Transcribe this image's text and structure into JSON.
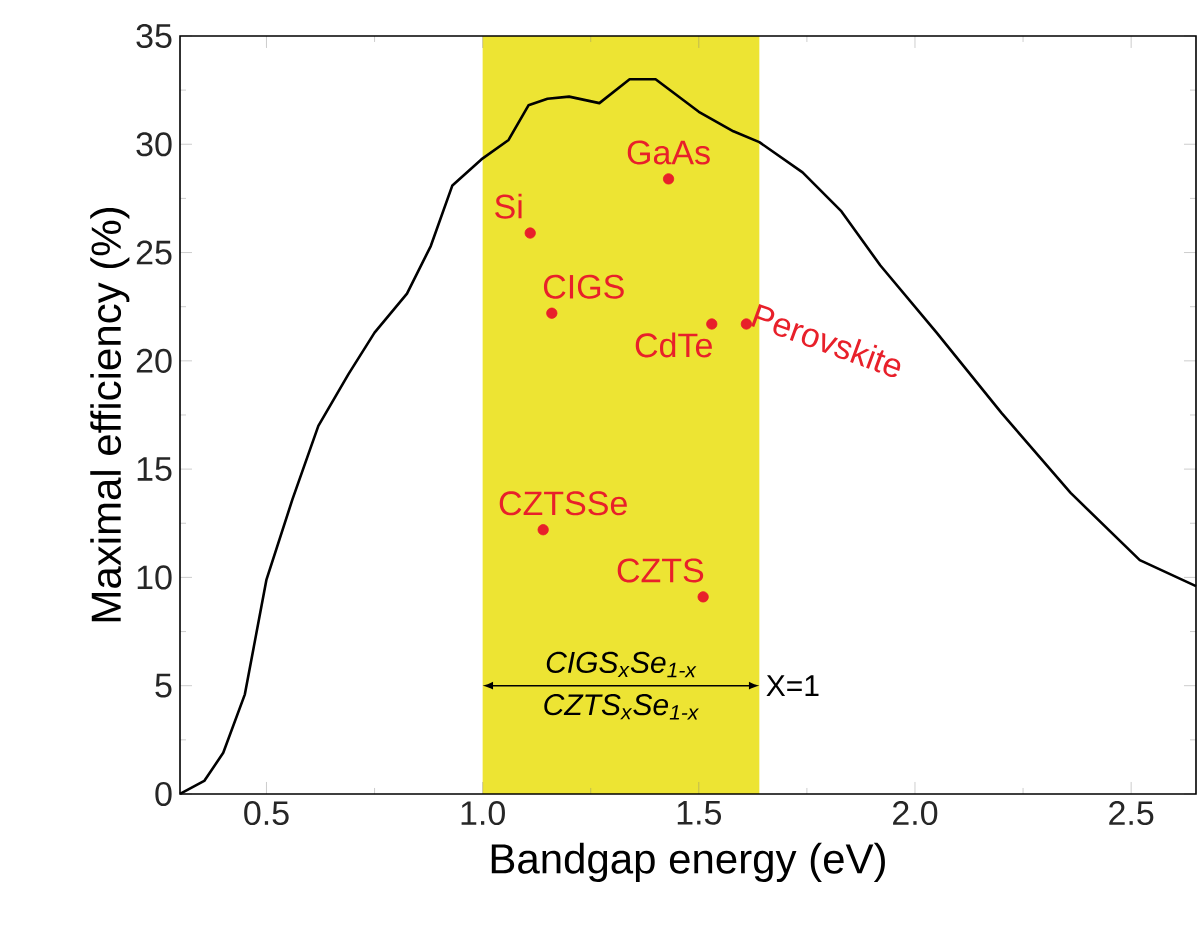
{
  "chart_data": {
    "type": "line",
    "xlabel": "Bandgap energy (eV)",
    "ylabel": "Maximal efficiency (%)",
    "xlim": [
      0.3,
      2.65
    ],
    "ylim": [
      0,
      35
    ],
    "xticks": [
      {
        "value": 0.5,
        "label": "0.5"
      },
      {
        "value": 1.0,
        "label": "1.0"
      },
      {
        "value": 1.5,
        "label": "1.5"
      },
      {
        "value": 2.0,
        "label": "2.0"
      },
      {
        "value": 2.5,
        "label": "2.5"
      }
    ],
    "yticks": [
      0,
      5,
      10,
      15,
      20,
      25,
      30,
      35
    ],
    "grid": false,
    "bands": [
      {
        "axis": "x",
        "from": 1.0,
        "to": 1.64,
        "color": "#ede433"
      }
    ],
    "series": [
      {
        "color": "#000000",
        "marker": "none",
        "line_style": "solid",
        "x": [
          0.3,
          0.356,
          0.4,
          0.45,
          0.5,
          0.56,
          0.62,
          0.69,
          0.75,
          0.825,
          0.88,
          0.93,
          0.997,
          1.06,
          1.106,
          1.15,
          1.2,
          1.27,
          1.34,
          1.4,
          1.5,
          1.58,
          1.64,
          1.74,
          1.83,
          1.92,
          2.05,
          2.2,
          2.36,
          2.52,
          2.65
        ],
        "values": [
          0,
          0.6,
          1.9,
          4.6,
          9.9,
          13.6,
          17.0,
          19.4,
          21.3,
          23.1,
          25.3,
          28.1,
          29.3,
          30.2,
          31.8,
          32.1,
          32.2,
          31.9,
          33.0,
          33.0,
          31.5,
          30.6,
          30.1,
          28.7,
          26.9,
          24.4,
          21.3,
          17.6,
          13.9,
          10.8,
          9.6
        ]
      },
      {
        "type": "scatter",
        "name": "Si",
        "color": "#e8202a",
        "marker": "circle",
        "x": [
          1.11
        ],
        "values": [
          25.9
        ]
      },
      {
        "type": "scatter",
        "name": "GaAs",
        "color": "#e8202a",
        "marker": "circle",
        "x": [
          1.43
        ],
        "values": [
          28.4
        ]
      },
      {
        "type": "scatter",
        "name": "CIGS",
        "color": "#e8202a",
        "marker": "circle",
        "x": [
          1.16
        ],
        "values": [
          22.2
        ]
      },
      {
        "type": "scatter",
        "name": "CdTe",
        "color": "#e8202a",
        "marker": "circle",
        "x": [
          1.53
        ],
        "values": [
          21.7
        ]
      },
      {
        "type": "scatter",
        "name": "Perovskite",
        "color": "#e8202a",
        "marker": "circle",
        "x": [
          1.61
        ],
        "values": [
          21.7
        ]
      },
      {
        "type": "scatter",
        "name": "CZTSSe",
        "color": "#e8202a",
        "marker": "circle",
        "x": [
          1.14
        ],
        "values": [
          12.2
        ]
      },
      {
        "type": "scatter",
        "name": "CZTS",
        "color": "#e8202a",
        "marker": "circle",
        "x": [
          1.51
        ],
        "values": [
          9.1
        ]
      }
    ],
    "annotations": [
      "CIGS$_{x}$Se$_{1-x}$",
      "CZTS$_{x}$Se$_{1-x}$",
      "X=1"
    ]
  }
}
